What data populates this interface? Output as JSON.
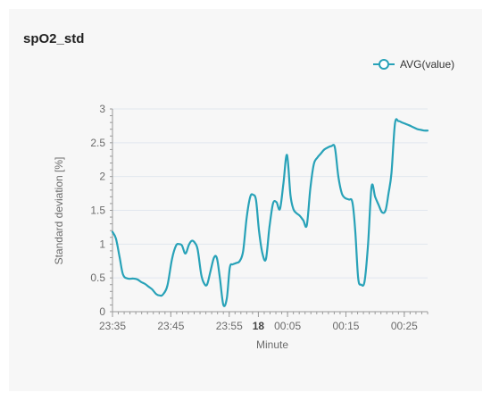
{
  "panel": {
    "title": "spO2_std"
  },
  "colors": {
    "series": "#28a2b8",
    "grid": "#e2e7ee",
    "axis": "#9a9a9a",
    "background": "#f7f7f7"
  },
  "chart_data": {
    "type": "line",
    "xlabel": "Minute",
    "ylabel": "Standard deviation [%]",
    "xlim": [
      0,
      54
    ],
    "ylim": [
      0,
      3
    ],
    "grid": true,
    "legend": "top-right",
    "x_ticks": [
      {
        "x": 0,
        "label": "23:35"
      },
      {
        "x": 10,
        "label": "23:45"
      },
      {
        "x": 20,
        "label": "23:55"
      },
      {
        "x": 25,
        "label": "18",
        "bold": true
      },
      {
        "x": 30,
        "label": "00:05"
      },
      {
        "x": 40,
        "label": "00:15"
      },
      {
        "x": 50,
        "label": "00:25"
      }
    ],
    "y_ticks": [
      0,
      0.5,
      1,
      1.5,
      2,
      2.5,
      3
    ],
    "series": [
      {
        "name": "AVG(value)",
        "x": [
          0,
          0.6,
          1.2,
          1.8,
          2.6,
          3.5,
          4.2,
          4.9,
          5.6,
          6.2,
          6.8,
          7.5,
          8.1,
          8.6,
          9.4,
          10.2,
          10.9,
          11.4,
          11.9,
          12.5,
          13.1,
          13.6,
          14.1,
          14.6,
          15.2,
          15.7,
          16.2,
          16.8,
          17.4,
          17.9,
          18.4,
          19.0,
          19.6,
          20.1,
          20.6,
          21.2,
          21.8,
          22.4,
          23.0,
          23.6,
          24.1,
          24.6,
          25.1,
          25.7,
          26.3,
          26.9,
          27.5,
          28.1,
          28.7,
          29.3,
          29.9,
          30.5,
          31.0,
          31.5,
          32.1,
          32.7,
          33.3,
          33.9,
          34.5,
          35.1,
          35.7,
          36.3,
          36.9,
          37.5,
          38.1,
          38.7,
          39.3,
          39.9,
          40.5,
          41.1,
          41.6,
          42.1,
          42.6,
          43.2,
          43.8,
          44.4,
          45.0,
          45.6,
          46.2,
          46.8,
          47.3,
          47.8,
          48.4,
          49.0,
          49.6,
          50.2,
          50.8,
          51.3,
          51.8,
          52.3,
          52.9,
          53.4,
          54.0
        ],
        "y": [
          1.18,
          1.08,
          0.82,
          0.55,
          0.49,
          0.49,
          0.48,
          0.44,
          0.41,
          0.37,
          0.33,
          0.26,
          0.24,
          0.25,
          0.38,
          0.78,
          0.98,
          1.0,
          0.98,
          0.86,
          0.99,
          1.05,
          1.02,
          0.92,
          0.55,
          0.42,
          0.4,
          0.6,
          0.8,
          0.79,
          0.5,
          0.1,
          0.2,
          0.65,
          0.7,
          0.72,
          0.75,
          0.9,
          1.4,
          1.7,
          1.73,
          1.65,
          1.2,
          0.86,
          0.78,
          1.25,
          1.6,
          1.62,
          1.52,
          1.9,
          2.32,
          1.72,
          1.52,
          1.46,
          1.42,
          1.35,
          1.28,
          1.82,
          2.18,
          2.28,
          2.34,
          2.4,
          2.43,
          2.45,
          2.43,
          2.0,
          1.75,
          1.68,
          1.66,
          1.62,
          1.2,
          0.5,
          0.4,
          0.45,
          1.0,
          1.85,
          1.7,
          1.58,
          1.47,
          1.5,
          1.75,
          2.05,
          2.78,
          2.82,
          2.8,
          2.78,
          2.76,
          2.74,
          2.72,
          2.7,
          2.69,
          2.68,
          2.68
        ]
      }
    ]
  }
}
